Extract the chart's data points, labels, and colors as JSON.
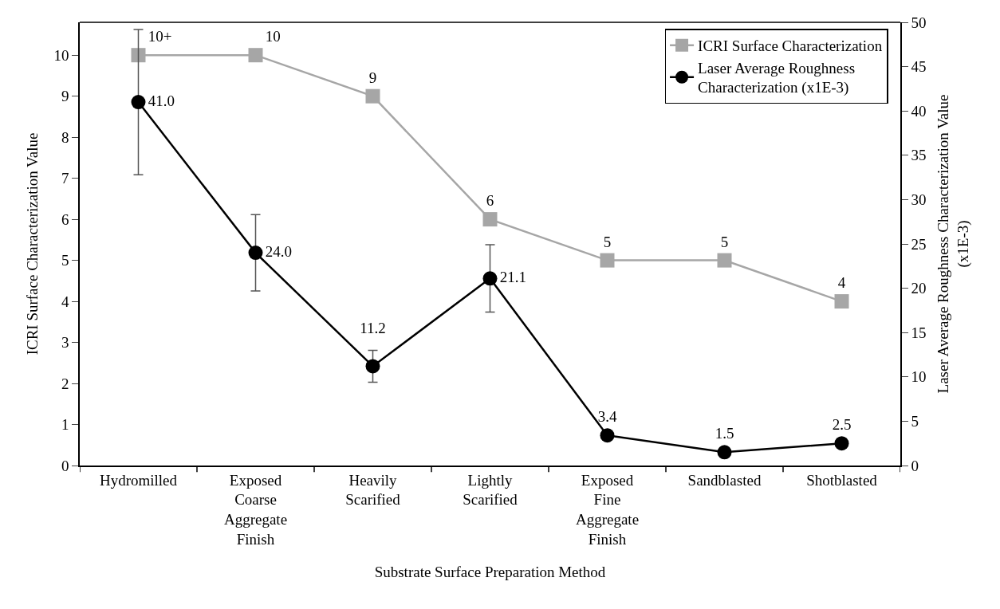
{
  "chart_data": {
    "type": "line",
    "xlabel": "Substrate Surface Preparation Method",
    "ylabel": "ICRI Surface Characterization Value",
    "y2label": "Laser Average Roughness Characterization Value (x1E-3)",
    "categories": [
      "Hydromilled",
      "Exposed Coarse Aggregate Finish",
      "Heavily Scarified",
      "Lightly Scarified",
      "Exposed Fine Aggregate Finish",
      "Sandblasted",
      "Shotblasted"
    ],
    "series": [
      {
        "name": "ICRI Surface Characterization",
        "color": "#a6a6a6",
        "marker": "square",
        "values": [
          10,
          10,
          9,
          6,
          5,
          5,
          4
        ],
        "value_labels": [
          "10+",
          "10",
          "9",
          "6",
          "5",
          "5",
          "4"
        ]
      },
      {
        "name": "Laser Average Roughness Characterization (x1E-3)",
        "color": "#000000",
        "marker": "circle",
        "axis": "y2",
        "values": [
          41.0,
          24.0,
          11.2,
          21.1,
          3.4,
          1.5,
          2.5
        ],
        "value_labels": [
          "41.0",
          "24.0",
          "11.2",
          "21.1",
          "3.4",
          "1.5",
          "2.5"
        ],
        "errors": [
          8.2,
          4.3,
          1.8,
          3.8,
          null,
          null,
          null
        ]
      }
    ],
    "ylim": [
      0,
      10.8
    ],
    "yticks": [
      0,
      1,
      2,
      3,
      4,
      5,
      6,
      7,
      8,
      9,
      10
    ],
    "y2lim": [
      0,
      50
    ],
    "y2ticks": [
      0,
      5,
      10,
      15,
      20,
      25,
      30,
      35,
      40,
      45,
      50
    ],
    "legend": "top right",
    "line_style": "solid"
  }
}
